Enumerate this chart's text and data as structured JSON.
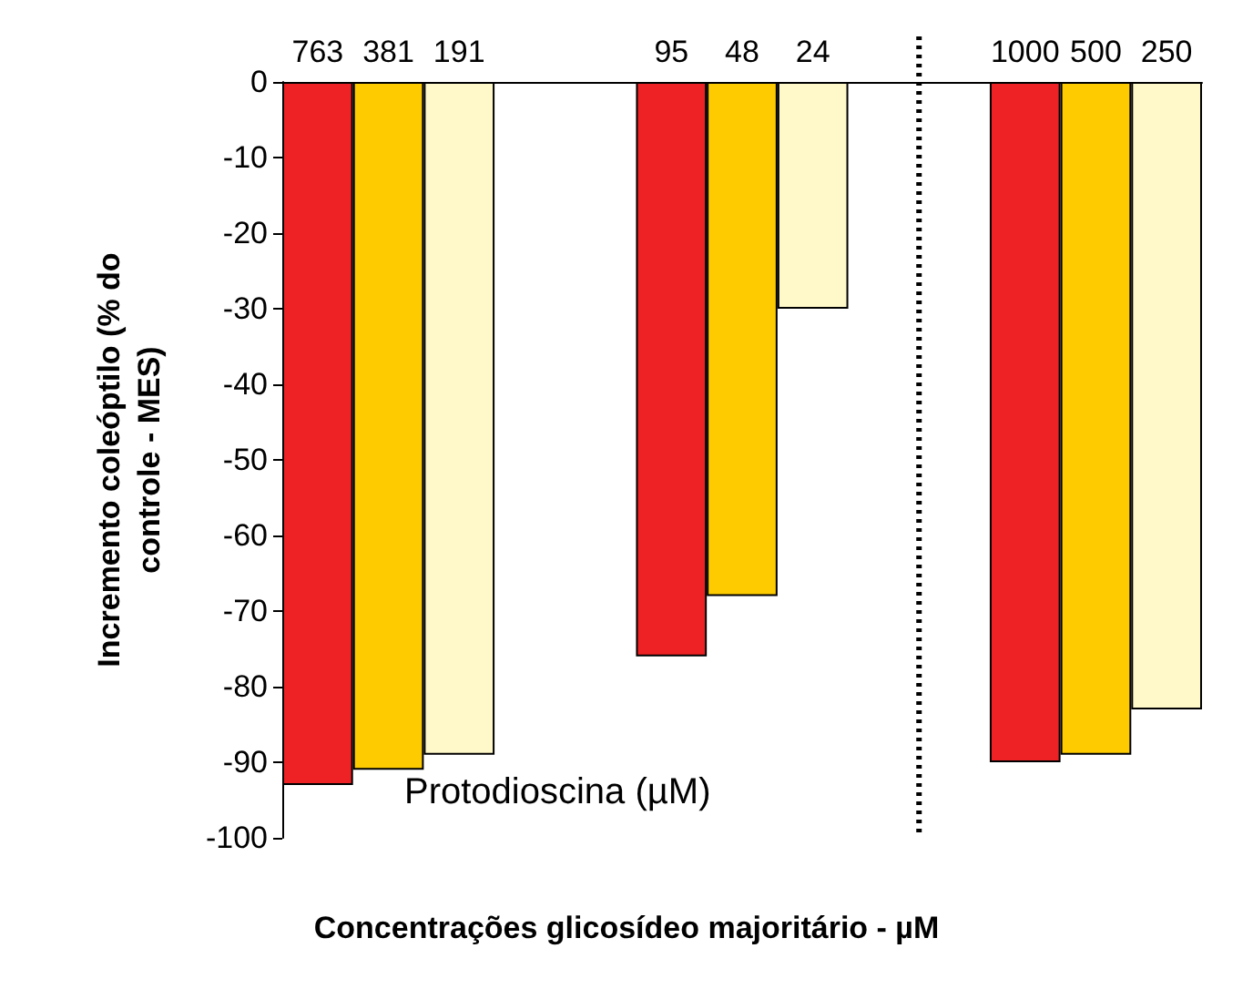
{
  "chart_data": {
    "type": "bar",
    "xlabel": "Concentrações glicosídeo majoritário - µM",
    "ylabel": "Incremento coleóptilo (% do\ncontrole - MES)",
    "categories": [
      "763",
      "381",
      "191",
      null,
      null,
      "95",
      "48",
      "24",
      null,
      null,
      "1000",
      "500",
      "250"
    ],
    "values": [
      -93,
      -91,
      -89,
      null,
      null,
      -76,
      -68,
      -30,
      null,
      null,
      -90,
      -89,
      -83
    ],
    "colors": [
      "#ee2224",
      "#fecb00",
      "#fff8c8",
      null,
      null,
      "#ee2224",
      "#fecb00",
      "#fff8c8",
      null,
      null,
      "#ee2224",
      "#fecb00",
      "#fff8c8"
    ],
    "ylim": [
      -100,
      0
    ],
    "yticks": [
      -100,
      -90,
      -80,
      -70,
      -60,
      -50,
      -40,
      -30,
      -20,
      -10,
      0
    ],
    "annotations": [
      "Protodioscina (µM)"
    ],
    "grid": false
  }
}
